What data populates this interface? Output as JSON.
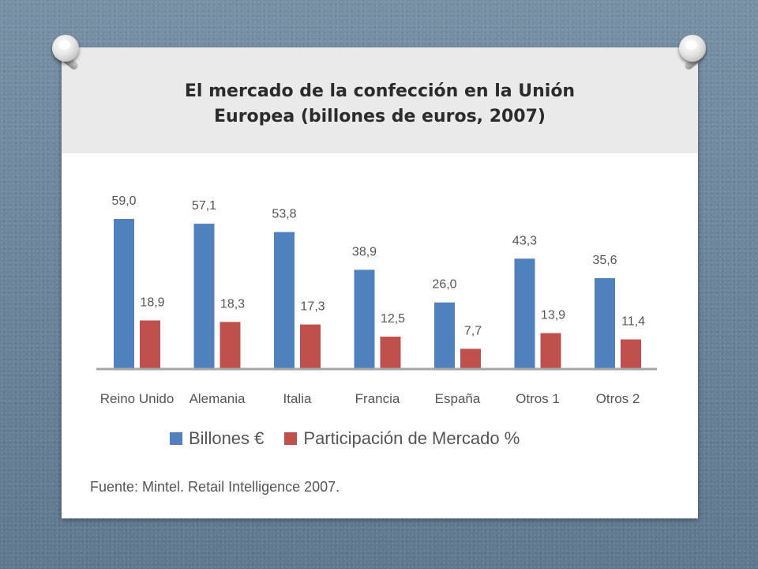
{
  "slide": {
    "title_line1": "El mercado de la confección en la Unión",
    "title_line2": "Europea (billones de euros, 2007)",
    "source": "Fuente: Mintel. Retail Intelligence 2007."
  },
  "chart_data": {
    "type": "bar",
    "title": "",
    "xlabel": "",
    "ylabel": "",
    "ylim": [
      0,
      59
    ],
    "grid": false,
    "legend": "bottom",
    "categories": [
      "Reino Unido",
      "Alemania",
      "Italia",
      "Francia",
      "España",
      "Otros 1",
      "Otros 2"
    ],
    "series": [
      {
        "name": "Billones €",
        "color": "#4f81bd",
        "values": [
          59.0,
          57.1,
          53.8,
          38.9,
          26.0,
          43.3,
          35.6
        ],
        "labels": [
          "59,0",
          "57,1",
          "53,8",
          "38,9",
          "26,0",
          "43,3",
          "35,6"
        ]
      },
      {
        "name": "Participación de Mercado %",
        "color": "#c0504d",
        "values": [
          18.9,
          18.3,
          17.3,
          12.5,
          7.7,
          13.9,
          11.4
        ],
        "labels": [
          "18,9",
          "18,3",
          "17,3",
          "12,5",
          "7,7",
          "13,9",
          "11,4"
        ]
      }
    ]
  }
}
